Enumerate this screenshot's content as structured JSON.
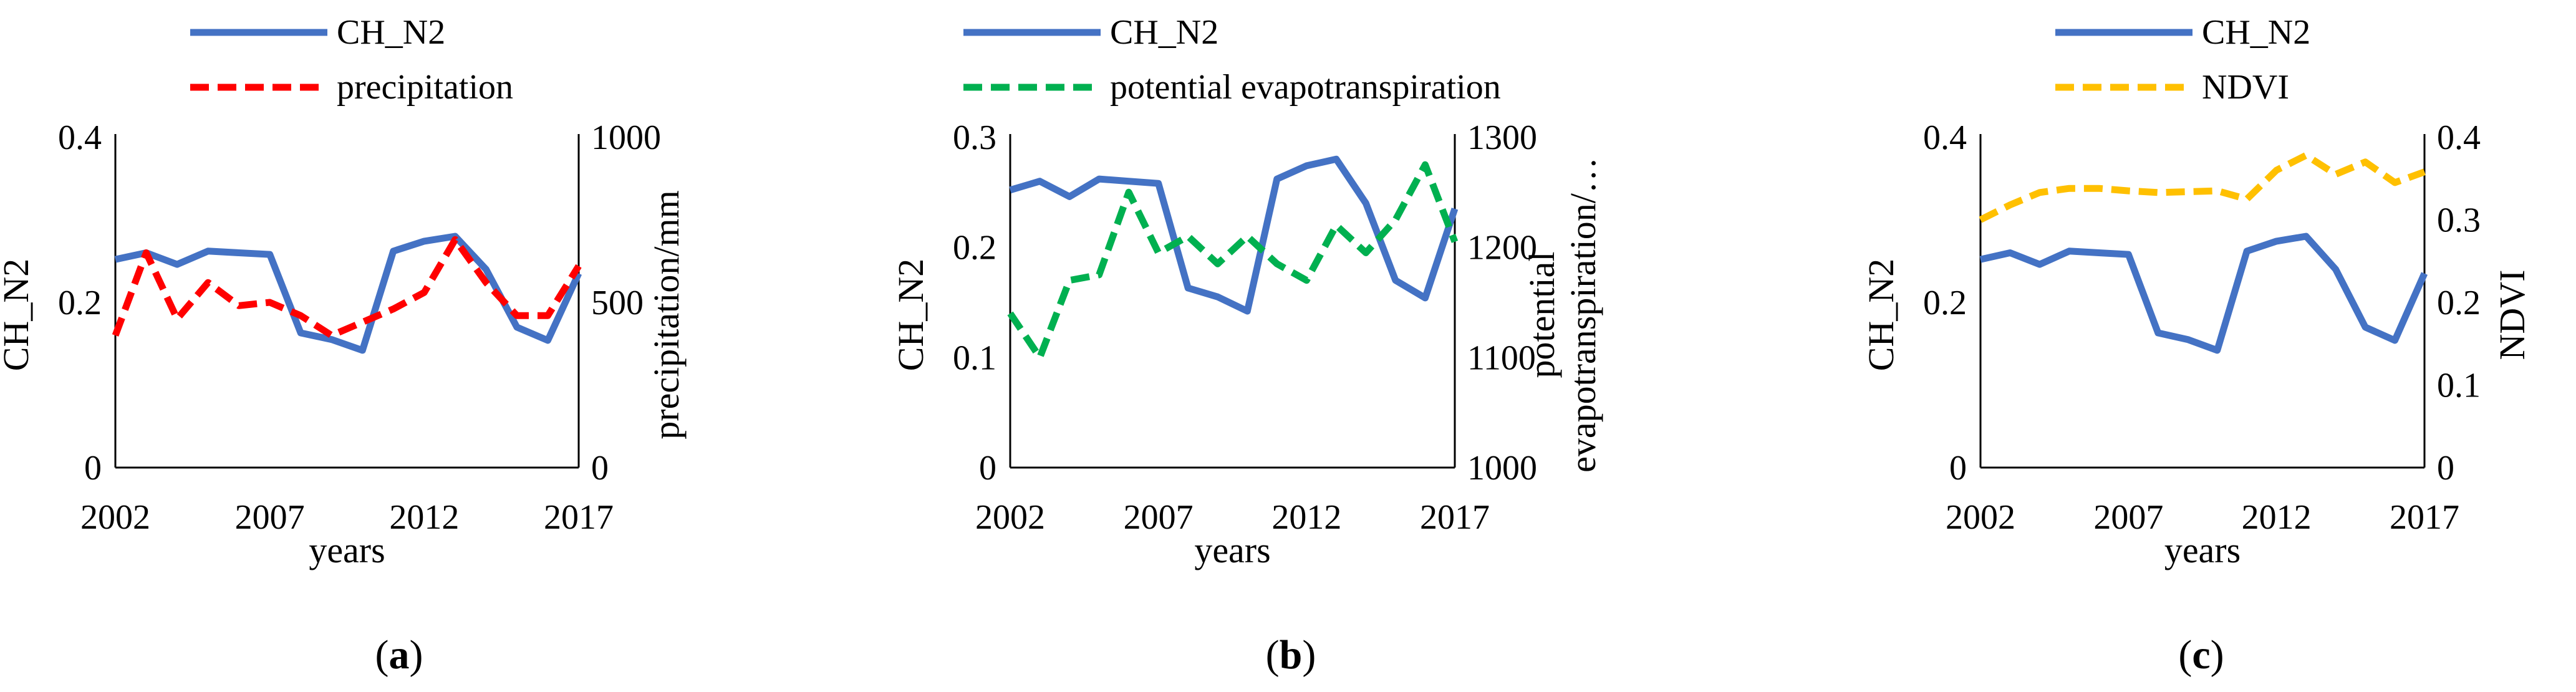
{
  "colors": {
    "ch_n2": "#4472C4",
    "precipitation": "#FF0000",
    "pet": "#00B050",
    "ndvi": "#FFC000"
  },
  "chart_data": [
    {
      "type": "line",
      "panel": "a",
      "xlabel": "years",
      "ylabel_left": "CH_N2",
      "ylabel_right": "precipitation/mm",
      "x": [
        2002,
        2003,
        2004,
        2005,
        2006,
        2007,
        2008,
        2009,
        2010,
        2011,
        2012,
        2013,
        2014,
        2015,
        2016,
        2017
      ],
      "x_ticks": [
        "2002",
        "2007",
        "2012",
        "2017"
      ],
      "y_left_lim": [
        0,
        0.4
      ],
      "y_left_ticks": [
        "0",
        "0.2",
        "0.4"
      ],
      "y_right_lim": [
        0,
        1000
      ],
      "y_right_ticks": [
        "0",
        "500",
        "1000"
      ],
      "series": [
        {
          "name": "CH_N2",
          "axis": "left",
          "style": "solid",
          "color": "#4472C4",
          "values": [
            0.252,
            0.26,
            0.246,
            0.262,
            0.26,
            0.258,
            0.163,
            0.155,
            0.142,
            0.262,
            0.274,
            0.28,
            0.24,
            0.17,
            0.154,
            0.235
          ]
        },
        {
          "name": "precipitation",
          "axis": "right",
          "style": "dashed",
          "color": "#FF0000",
          "values": [
            400,
            650,
            450,
            560,
            490,
            500,
            460,
            400,
            440,
            480,
            530,
            690,
            560,
            460,
            460,
            610
          ]
        }
      ]
    },
    {
      "type": "line",
      "panel": "b",
      "xlabel": "years",
      "ylabel_left": "CH_N2",
      "ylabel_right_line1": "potential",
      "ylabel_right_line2": "evapotranspiration/…",
      "x": [
        2002,
        2003,
        2004,
        2005,
        2006,
        2007,
        2008,
        2009,
        2010,
        2011,
        2012,
        2013,
        2014,
        2015,
        2016,
        2017
      ],
      "x_ticks": [
        "2002",
        "2007",
        "2012",
        "2017"
      ],
      "y_left_lim": [
        0,
        0.3
      ],
      "y_left_ticks": [
        "0",
        "0.1",
        "0.2",
        "0.3"
      ],
      "y_right_lim": [
        1000,
        1300
      ],
      "y_right_ticks": [
        "1000",
        "1100",
        "1200",
        "1300"
      ],
      "series": [
        {
          "name": "CH_N2",
          "axis": "left",
          "style": "solid",
          "color": "#4472C4",
          "values": [
            0.252,
            0.26,
            0.246,
            0.262,
            0.26,
            0.258,
            0.163,
            0.155,
            0.142,
            0.262,
            0.274,
            0.28,
            0.24,
            0.17,
            0.154,
            0.235
          ]
        },
        {
          "name": "potential evapotranspiration",
          "axis": "right",
          "style": "dashed",
          "color": "#00B050",
          "values": [
            1140,
            1100,
            1170,
            1175,
            1250,
            1195,
            1210,
            1185,
            1210,
            1185,
            1170,
            1220,
            1195,
            1225,
            1275,
            1205
          ]
        }
      ]
    },
    {
      "type": "line",
      "panel": "c",
      "xlabel": "years",
      "ylabel_left": "CH_N2",
      "ylabel_right": "NDVI",
      "x": [
        2002,
        2003,
        2004,
        2005,
        2006,
        2007,
        2008,
        2009,
        2010,
        2011,
        2012,
        2013,
        2014,
        2015,
        2016,
        2017
      ],
      "x_ticks": [
        "2002",
        "2007",
        "2012",
        "2017"
      ],
      "y_left_lim": [
        0,
        0.4
      ],
      "y_left_ticks": [
        "0",
        "0.2",
        "0.4"
      ],
      "y_right_lim": [
        0,
        0.4
      ],
      "y_right_ticks": [
        "0",
        "0.1",
        "0.2",
        "0.3",
        "0.4"
      ],
      "series": [
        {
          "name": "CH_N2",
          "axis": "left",
          "style": "solid",
          "color": "#4472C4",
          "values": [
            0.252,
            0.26,
            0.246,
            0.262,
            0.26,
            0.258,
            0.163,
            0.155,
            0.142,
            0.262,
            0.274,
            0.28,
            0.24,
            0.17,
            0.154,
            0.235
          ]
        },
        {
          "name": "NDVI",
          "axis": "right",
          "style": "dashed",
          "color": "#FFC000",
          "values": [
            0.3,
            0.318,
            0.333,
            0.338,
            0.338,
            0.335,
            0.333,
            0.334,
            0.335,
            0.325,
            0.36,
            0.378,
            0.355,
            0.37,
            0.345,
            0.358
          ]
        }
      ]
    }
  ],
  "panel_labels": {
    "a_open": "(",
    "a_letter": "a",
    "a_close": ")",
    "b_open": "(",
    "b_letter": "b",
    "b_close": ")",
    "c_open": "(",
    "c_letter": "c",
    "c_close": ")"
  }
}
